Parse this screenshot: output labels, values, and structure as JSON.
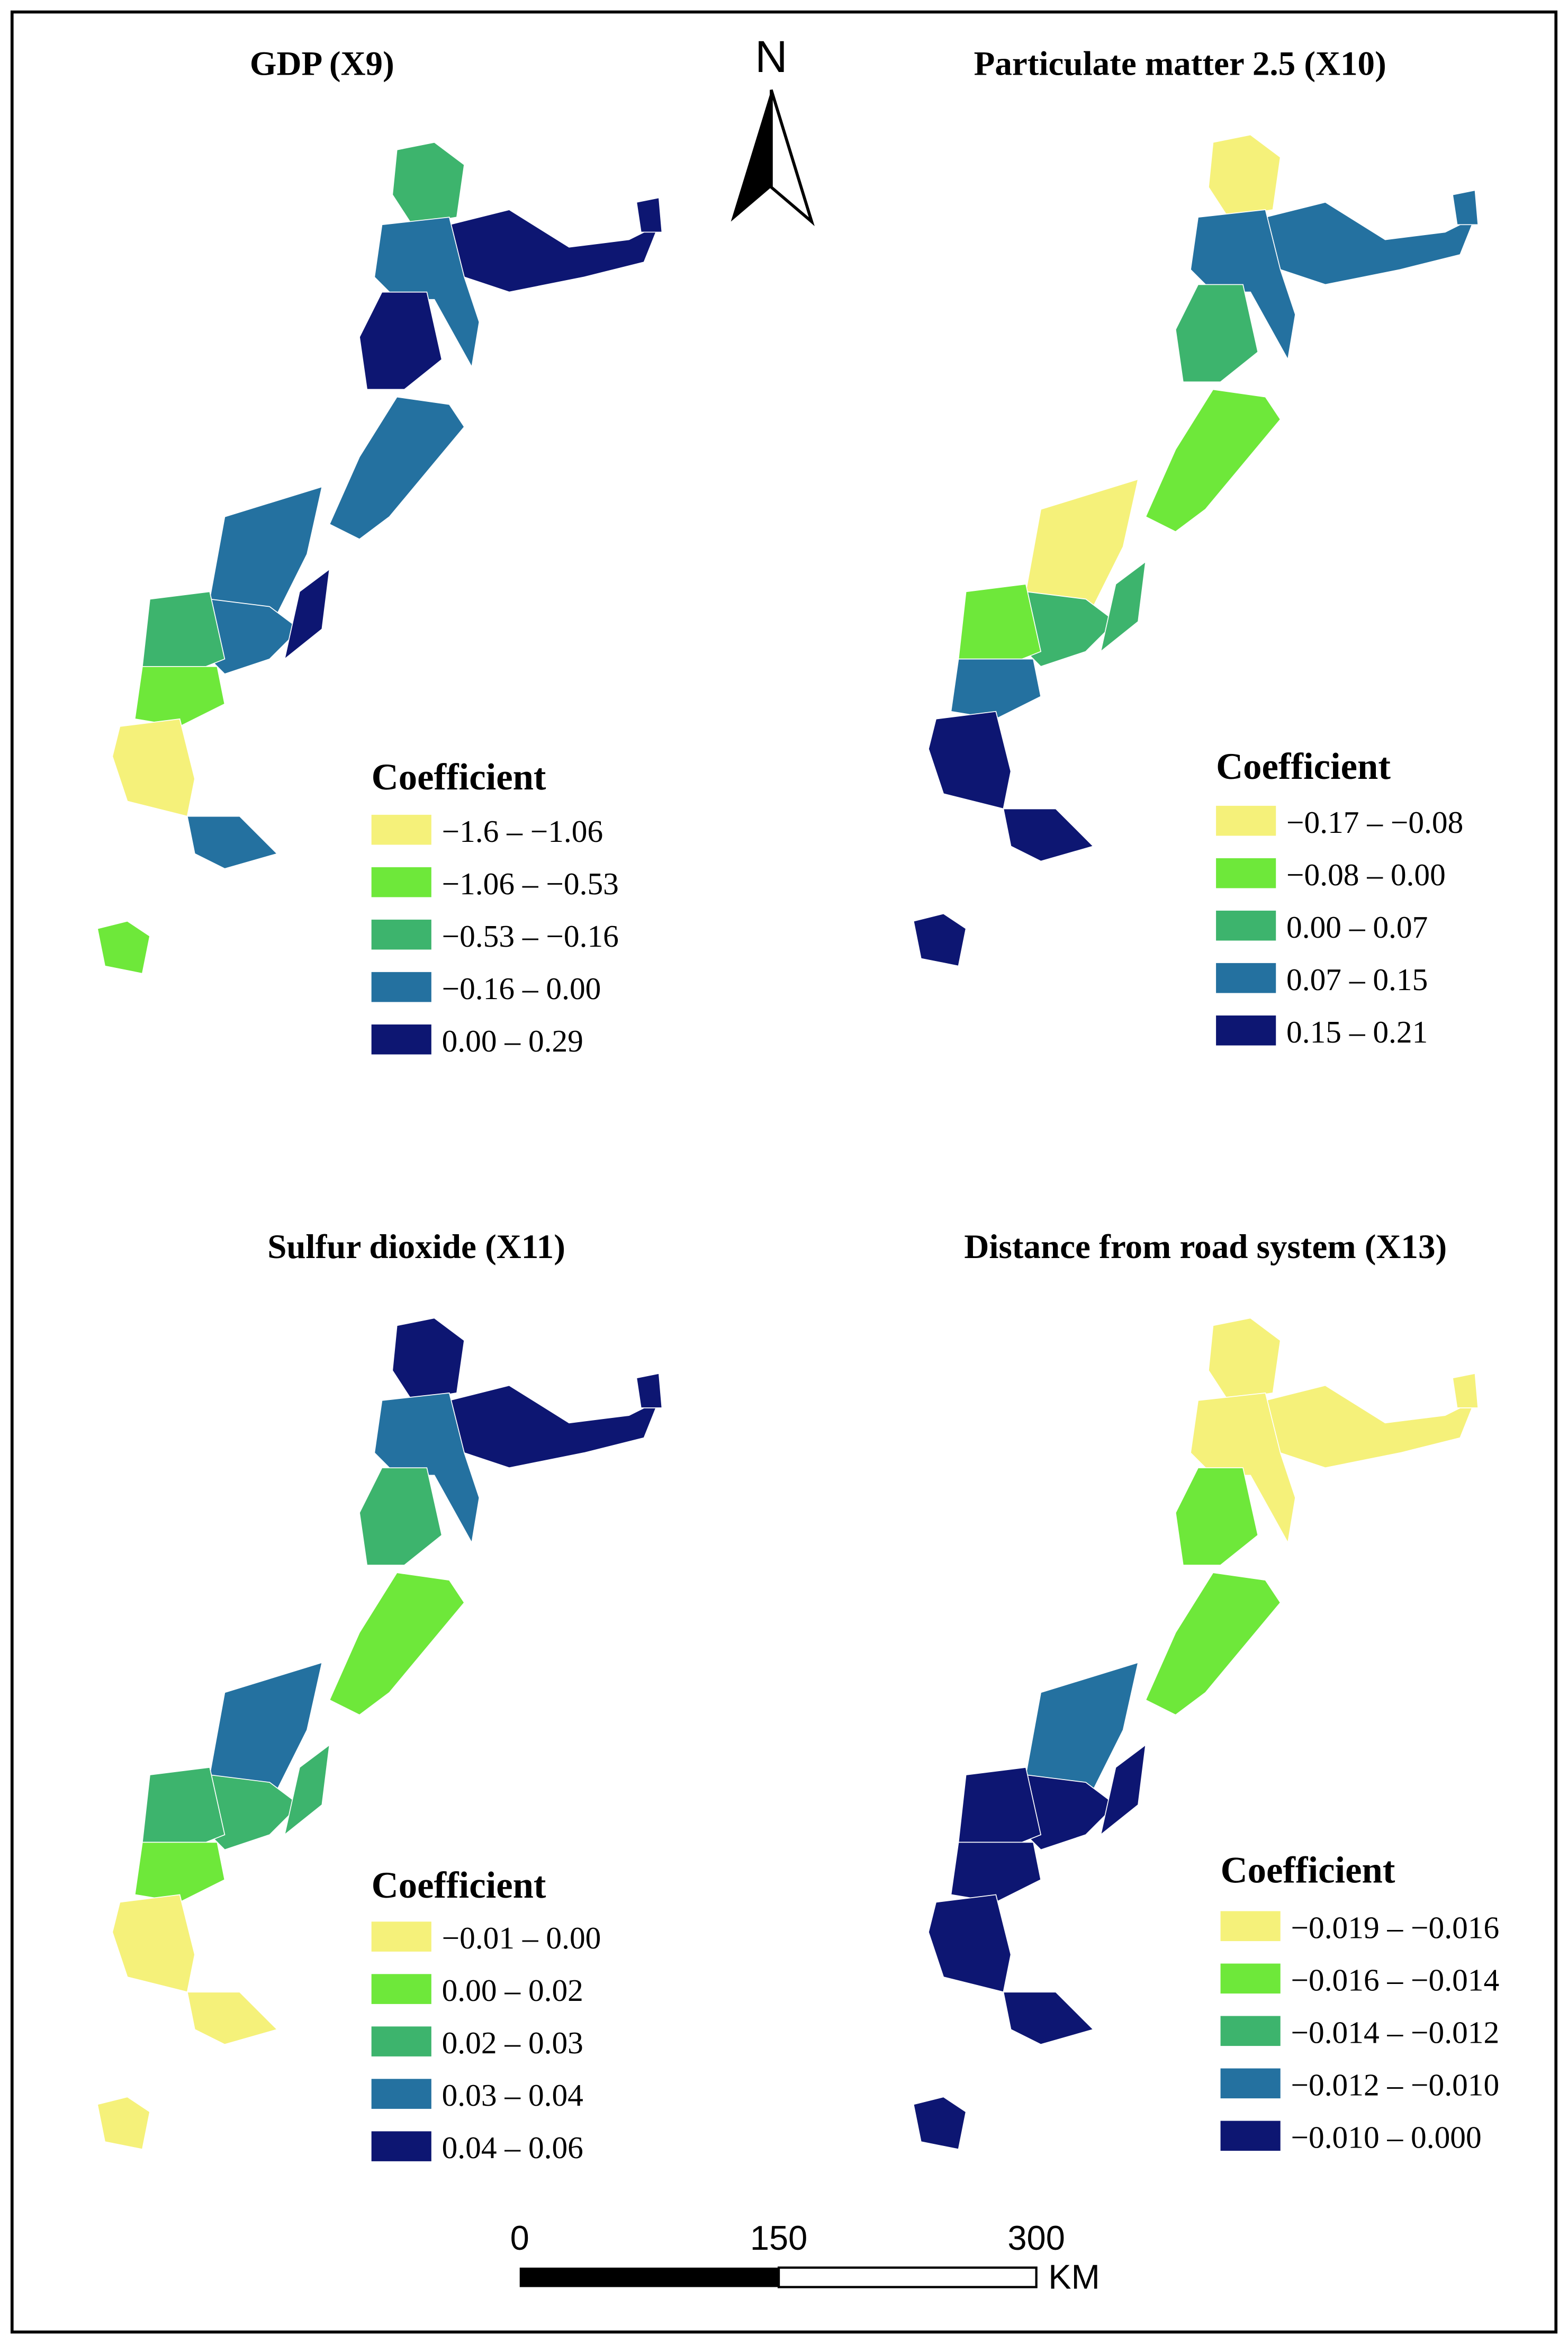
{
  "north_arrow": "N",
  "scale_bar": {
    "labels": [
      "0",
      "150",
      "300"
    ],
    "unit": "KM"
  },
  "panels": [
    {
      "title": "GDP (X9)",
      "legend": {
        "title": "Coefficient",
        "items": [
          {
            "label": "−1.6 – −1.06",
            "color": "#f5f17a"
          },
          {
            "label": "−1.06 – −0.53",
            "color": "#6ee83a"
          },
          {
            "label": "−0.53 – −0.16",
            "color": "#3db46d"
          },
          {
            "label": "−0.16 – 0.00",
            "color": "#2471a0"
          },
          {
            "label": "0.00 – 0.29",
            "color": "#0d1672"
          }
        ]
      }
    },
    {
      "title": "Particulate matter 2.5 (X10)",
      "legend": {
        "title": "Coefficient",
        "items": [
          {
            "label": "−0.17 – −0.08",
            "color": "#f5f17a"
          },
          {
            "label": "−0.08 – 0.00",
            "color": "#6ee83a"
          },
          {
            "label": "0.00 – 0.07",
            "color": "#3db46d"
          },
          {
            "label": "0.07 – 0.15",
            "color": "#2471a0"
          },
          {
            "label": "0.15 – 0.21",
            "color": "#0d1672"
          }
        ]
      }
    },
    {
      "title": "Sulfur dioxide (X11)",
      "legend": {
        "title": "Coefficient",
        "items": [
          {
            "label": "−0.01 – 0.00",
            "color": "#f5f17a"
          },
          {
            "label": "0.00 – 0.02",
            "color": "#6ee83a"
          },
          {
            "label": "0.02 – 0.03",
            "color": "#3db46d"
          },
          {
            "label": "0.03 – 0.04",
            "color": "#2471a0"
          },
          {
            "label": "0.04 – 0.06",
            "color": "#0d1672"
          }
        ]
      }
    },
    {
      "title": "Distance from road system (X13)",
      "legend": {
        "title": "Coefficient",
        "items": [
          {
            "label": "−0.019 – −0.016",
            "color": "#f5f17a"
          },
          {
            "label": "−0.016 – −0.014",
            "color": "#6ee83a"
          },
          {
            "label": "−0.014 – −0.012",
            "color": "#3db46d"
          },
          {
            "label": "−0.012 – −0.010",
            "color": "#2471a0"
          },
          {
            "label": "−0.010 – 0.000",
            "color": "#0d1672"
          }
        ]
      }
    }
  ]
}
